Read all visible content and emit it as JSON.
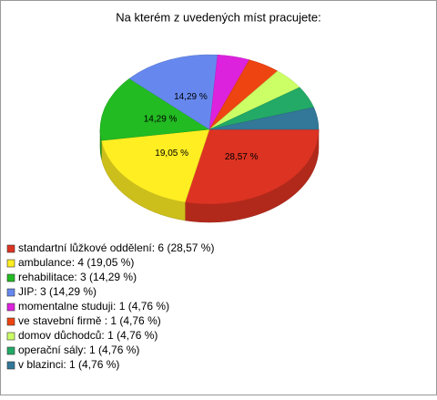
{
  "chart_data": {
    "type": "pie",
    "title": "Na kterém z uvedených míst pracujete:",
    "categories": [
      "standartní lůžkové oddělení: 6 (28,57 %)",
      "ambulance: 4 (19,05 %)",
      "rehabilitace: 3 (14,29 %)",
      "JIP: 3 (14,29 %)",
      "momentalne studuji: 1 (4,76 %)",
      "ve stavební firmě : 1 (4,76 %)",
      "domov důchodců: 1 (4,76 %)",
      "operační sály: 1 (4,76 %)",
      "v blazinci: 1 (4,76 %)"
    ],
    "values": [
      28.57,
      19.05,
      14.29,
      14.29,
      4.76,
      4.76,
      4.76,
      4.76,
      4.76
    ],
    "value_labels": [
      "28,57 %",
      "19,05 %",
      "14,29 %",
      "14,29 %",
      null,
      null,
      null,
      null,
      null
    ],
    "colors": [
      "#dd3322",
      "#ffee22",
      "#22bb22",
      "#6688ee",
      "#dd22dd",
      "#ee4411",
      "#ccff66",
      "#22aa66",
      "#337799"
    ]
  }
}
